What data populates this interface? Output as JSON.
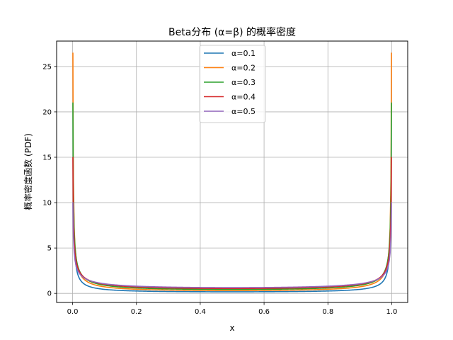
{
  "chart_data": {
    "type": "line",
    "title": "Beta分布 (α=β) 的概率密度",
    "xlabel": "x",
    "ylabel": "概率密度函数 (PDF)",
    "xlim": [
      -0.05,
      1.05
    ],
    "ylim": [
      -1.0,
      27.8
    ],
    "x_ticks": [
      0.0,
      0.2,
      0.4,
      0.6,
      0.8,
      1.0
    ],
    "x_tick_labels": [
      "0.0",
      "0.2",
      "0.4",
      "0.6",
      "0.8",
      "1.0"
    ],
    "y_ticks": [
      0,
      5,
      10,
      15,
      20,
      25
    ],
    "y_tick_labels": [
      "0",
      "5",
      "10",
      "15",
      "20",
      "25"
    ],
    "grid": true,
    "legend_position": "top-center",
    "x_range": [
      0.0001,
      0.9999
    ],
    "series": [
      {
        "name": "α=0.1",
        "alpha": 0.1,
        "color": "#1f77b4",
        "peak": 10.0
      },
      {
        "name": "α=0.2",
        "alpha": 0.2,
        "color": "#ff7f0e",
        "peak": 26.5
      },
      {
        "name": "α=0.3",
        "alpha": 0.3,
        "color": "#2ca02c",
        "peak": 21.0
      },
      {
        "name": "α=0.4",
        "alpha": 0.4,
        "color": "#d62728",
        "peak": 15.0
      },
      {
        "name": "α=0.5",
        "alpha": 0.5,
        "color": "#9467bd",
        "peak": 10.0
      }
    ]
  }
}
